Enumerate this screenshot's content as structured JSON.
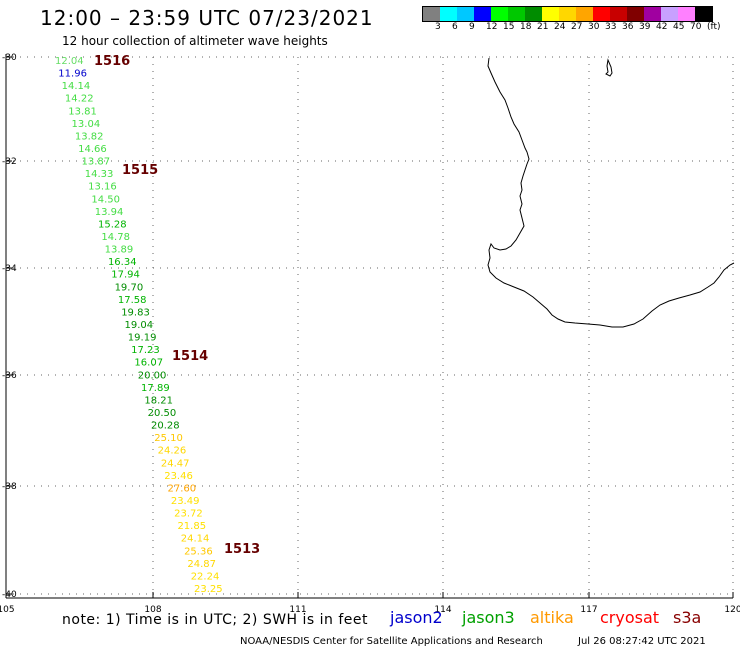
{
  "title": "12:00 – 23:59 UTC 07/23/2021",
  "subtitle": "12 hour collection of altimeter wave heights",
  "color_scale": {
    "colors": [
      "#808080",
      "#00ffff",
      "#00c8ff",
      "#0000ff",
      "#00ff00",
      "#00c800",
      "#008c00",
      "#ffff00",
      "#ffd700",
      "#ffa500",
      "#ff0000",
      "#c80000",
      "#800000",
      "#a000a0",
      "#c8a0ff",
      "#ff80ff",
      "#000000"
    ],
    "labels": [
      "3",
      "6",
      "9",
      "12",
      "15",
      "18",
      "21",
      "24",
      "27",
      "30",
      "33",
      "36",
      "39",
      "42",
      "45",
      "70",
      "(ft)"
    ]
  },
  "lat_ticks": [
    "-30",
    "-32",
    "-34",
    "-36",
    "-38",
    "-40"
  ],
  "lon_ticks": [
    "105",
    "108",
    "111",
    "114",
    "117",
    "120"
  ],
  "passes": [
    {
      "label": "1516"
    },
    {
      "label": "1515"
    },
    {
      "label": "1514"
    },
    {
      "label": "1513"
    }
  ],
  "wave_heights": [
    {
      "v": "12.04",
      "c": "#66dd66"
    },
    {
      "v": "11.96",
      "c": "#0000cc"
    },
    {
      "v": "14.14",
      "c": "#44dd44"
    },
    {
      "v": "14.22",
      "c": "#44dd44"
    },
    {
      "v": "13.81",
      "c": "#44dd44"
    },
    {
      "v": "13.04",
      "c": "#44dd44"
    },
    {
      "v": "13.82",
      "c": "#44dd44"
    },
    {
      "v": "14.66",
      "c": "#44dd44"
    },
    {
      "v": "13.87",
      "c": "#44dd44"
    },
    {
      "v": "14.33",
      "c": "#44dd44"
    },
    {
      "v": "13.16",
      "c": "#44dd44"
    },
    {
      "v": "14.50",
      "c": "#44dd44"
    },
    {
      "v": "13.94",
      "c": "#44dd44"
    },
    {
      "v": "15.28",
      "c": "#00b400"
    },
    {
      "v": "14.78",
      "c": "#44dd44"
    },
    {
      "v": "13.89",
      "c": "#44dd44"
    },
    {
      "v": "16.34",
      "c": "#00b400"
    },
    {
      "v": "17.94",
      "c": "#00b400"
    },
    {
      "v": "19.70",
      "c": "#008c00"
    },
    {
      "v": "17.58",
      "c": "#00b400"
    },
    {
      "v": "19.83",
      "c": "#008c00"
    },
    {
      "v": "19.04",
      "c": "#008c00"
    },
    {
      "v": "19.19",
      "c": "#008c00"
    },
    {
      "v": "17.23",
      "c": "#00b400"
    },
    {
      "v": "16.07",
      "c": "#00b400"
    },
    {
      "v": "20.00",
      "c": "#008c00"
    },
    {
      "v": "17.89",
      "c": "#00b400"
    },
    {
      "v": "18.21",
      "c": "#008c00"
    },
    {
      "v": "20.50",
      "c": "#008c00"
    },
    {
      "v": "20.28",
      "c": "#008c00"
    },
    {
      "v": "25.10",
      "c": "#ffc800"
    },
    {
      "v": "24.26",
      "c": "#ffd700"
    },
    {
      "v": "24.47",
      "c": "#ffd700"
    },
    {
      "v": "23.46",
      "c": "#ffe000"
    },
    {
      "v": "27.60",
      "c": "#ffa500"
    },
    {
      "v": "23.49",
      "c": "#ffe000"
    },
    {
      "v": "23.72",
      "c": "#ffe000"
    },
    {
      "v": "21.85",
      "c": "#ffe000"
    },
    {
      "v": "24.14",
      "c": "#ffd700"
    },
    {
      "v": "25.36",
      "c": "#ffc800"
    },
    {
      "v": "24.87",
      "c": "#ffd700"
    },
    {
      "v": "22.24",
      "c": "#ffe000"
    },
    {
      "v": "23.25",
      "c": "#ffe000"
    }
  ],
  "note": "note:  1) Time is in UTC;  2) SWH is in feet",
  "satellites": [
    {
      "name": "jason2",
      "color": "#0000cc"
    },
    {
      "name": "jason3",
      "color": "#00a000"
    },
    {
      "name": "altika",
      "color": "#ff9900"
    },
    {
      "name": "cryosat",
      "color": "#ff0000"
    },
    {
      "name": "s3a",
      "color": "#880000"
    }
  ],
  "credit": "NOAA/NESDIS Center for Satellite Applications and Research",
  "timestamp": "Jul 26 08:27:42 UTC 2021"
}
